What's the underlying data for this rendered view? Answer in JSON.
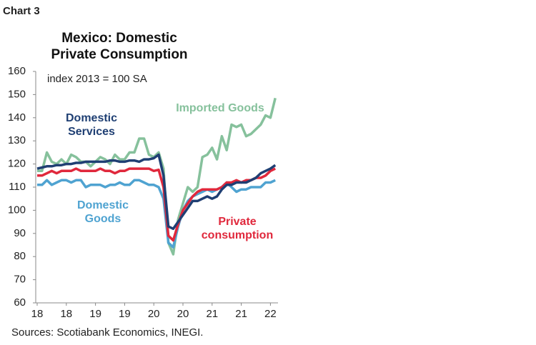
{
  "chart_label": "Chart 3",
  "chart_data": {
    "type": "line",
    "title": "Mexico: Domestic Private Consumption",
    "subtitle": "index 2013 = 100 SA",
    "source": "Sources: Scotiabank Economics, INEGI.",
    "categories": [
      "18",
      null,
      null,
      null,
      null,
      null,
      "18",
      null,
      null,
      null,
      null,
      null,
      "19",
      null,
      null,
      null,
      null,
      null,
      "19",
      null,
      null,
      null,
      null,
      null,
      "20",
      null,
      null,
      null,
      null,
      null,
      "20",
      null,
      null,
      null,
      null,
      null,
      "21",
      null,
      null,
      null,
      null,
      null,
      "21",
      null,
      null,
      null,
      null,
      null,
      "22",
      null
    ],
    "ylim": [
      60,
      160
    ],
    "yticks": [
      60,
      70,
      80,
      90,
      100,
      110,
      120,
      130,
      140,
      150,
      160
    ],
    "grid": false,
    "series": [
      {
        "name": "Imported Goods",
        "color": "#86c19c",
        "values": [
          117,
          117,
          125,
          121,
          120,
          122,
          120,
          124,
          123,
          121,
          121,
          119,
          121,
          123,
          122,
          120,
          124,
          122,
          122,
          125,
          125,
          131,
          131,
          124,
          123,
          125,
          118,
          86,
          81,
          96,
          103,
          110,
          108,
          110,
          123,
          124,
          127,
          122,
          132,
          126,
          137,
          136,
          137,
          132,
          133,
          135,
          137,
          141,
          140,
          148.5
        ]
      },
      {
        "name": "Domestic Goods",
        "color": "#4fa3d1",
        "values": [
          111,
          111,
          113,
          111,
          112,
          113,
          113,
          112,
          113,
          113,
          110,
          111,
          111,
          111,
          110,
          111,
          111,
          112,
          111,
          111,
          113,
          113,
          112,
          111,
          111,
          110,
          105,
          86,
          84,
          93,
          100,
          104,
          106,
          107,
          108,
          109,
          108,
          109,
          110,
          112,
          110,
          108,
          109,
          109,
          110,
          110,
          110,
          112,
          112,
          113
        ]
      },
      {
        "name": "Private consumption",
        "color": "#e0283c",
        "values": [
          115,
          115,
          116,
          117,
          116,
          117,
          117,
          117,
          118,
          117,
          117,
          117,
          117,
          118,
          117,
          117,
          116,
          117,
          117,
          118,
          118,
          118,
          118,
          118,
          117,
          117.5,
          110,
          89,
          87,
          94,
          100,
          103,
          106,
          108,
          109,
          109,
          109,
          109,
          110,
          112,
          112,
          113,
          112,
          113,
          113,
          114,
          114,
          115,
          117,
          118
        ]
      },
      {
        "name": "Domestic Services",
        "color": "#1f3f73",
        "values": [
          118,
          118.5,
          119,
          119,
          119.5,
          119.5,
          120,
          120,
          120.5,
          120.5,
          121,
          121,
          121,
          121,
          121,
          121.5,
          121.5,
          121,
          121,
          121.5,
          121.5,
          121,
          122,
          122,
          122.5,
          124,
          115,
          93,
          92,
          95,
          98,
          101,
          104,
          104,
          105,
          106,
          105,
          106,
          109,
          111,
          111,
          112,
          112,
          112,
          113,
          114,
          116,
          117,
          118,
          119.5
        ]
      }
    ]
  }
}
